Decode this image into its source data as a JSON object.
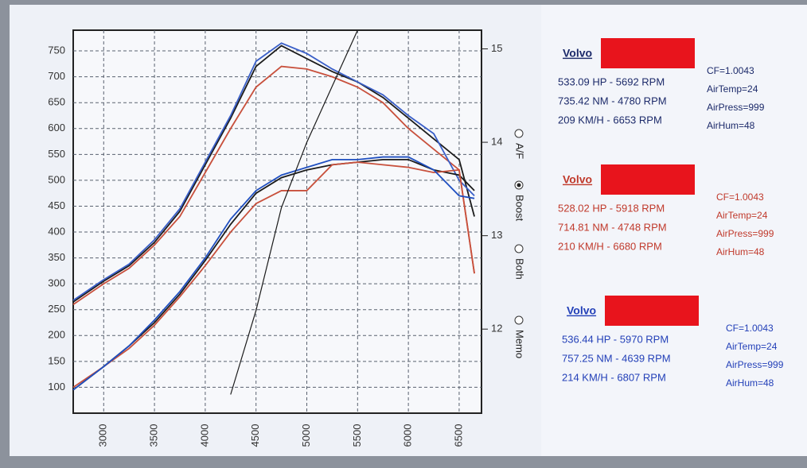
{
  "chart_data": {
    "type": "line",
    "x": [
      2700,
      3000,
      3250,
      3500,
      3750,
      4000,
      4250,
      4500,
      4750,
      5000,
      5250,
      5500,
      5750,
      6000,
      6250,
      6500,
      6650
    ],
    "xlim": [
      2700,
      6720
    ],
    "xticks": [
      3000,
      3500,
      4000,
      4500,
      5000,
      5500,
      6000,
      6500
    ],
    "ylim": [
      50,
      790
    ],
    "yticks": [
      100,
      150,
      200,
      250,
      300,
      350,
      400,
      450,
      500,
      550,
      600,
      650,
      700,
      750
    ],
    "y2lim": [
      11.1,
      15.2
    ],
    "y2ticks": [
      12,
      13,
      14,
      15
    ],
    "grid": true,
    "series": [
      {
        "color": "#1b1b1b",
        "values": [
          265,
          305,
          335,
          380,
          440,
          530,
          620,
          720,
          760,
          735,
          710,
          690,
          660,
          620,
          580,
          540,
          430
        ]
      },
      {
        "color": "#c8503c",
        "values": [
          260,
          300,
          330,
          375,
          430,
          515,
          600,
          680,
          720,
          715,
          700,
          680,
          650,
          600,
          560,
          520,
          320
        ]
      },
      {
        "color": "#3a5fc8",
        "values": [
          268,
          308,
          338,
          385,
          445,
          535,
          625,
          730,
          765,
          745,
          715,
          690,
          665,
          625,
          590,
          500,
          470
        ]
      },
      {
        "color": "#1b1b1b",
        "values": [
          95,
          140,
          180,
          225,
          280,
          345,
          415,
          475,
          505,
          520,
          530,
          535,
          540,
          540,
          520,
          510,
          480
        ]
      },
      {
        "color": "#c8503c",
        "values": [
          100,
          140,
          175,
          220,
          275,
          335,
          400,
          455,
          480,
          480,
          530,
          535,
          530,
          525,
          515,
          520,
          320
        ]
      },
      {
        "color": "#1f4fc0",
        "values": [
          95,
          140,
          180,
          230,
          285,
          350,
          425,
          480,
          510,
          525,
          540,
          540,
          545,
          545,
          520,
          470,
          465
        ]
      },
      {
        "color": "#1b1b1b",
        "axis": "y2",
        "values": [
          null,
          null,
          null,
          null,
          null,
          null,
          11.3,
          12.2,
          13.3,
          14.0,
          14.6,
          15.2,
          null,
          null,
          null,
          null,
          null
        ]
      }
    ]
  },
  "options": [
    "A/F",
    "Boost",
    "Both",
    "Memo"
  ],
  "selected_option": 1,
  "runs": [
    {
      "label": "Volvo",
      "color": "#1c2a6a",
      "lines": [
        "533.09 HP - 5692 RPM",
        "735.42 NM - 4780 RPM",
        "209 KM/H - 6653 RPM"
      ],
      "params": [
        "CF=1.0043",
        "AirTemp=24",
        "AirPress=999",
        "AirHum=48"
      ]
    },
    {
      "label": "Volvo",
      "color": "#c0392b",
      "lines": [
        "528.02 HP - 5918 RPM",
        "714.81 NM - 4748 RPM",
        "210 KM/H - 6680 RPM"
      ],
      "params": [
        "CF=1.0043",
        "AirTemp=24",
        "AirPress=999",
        "AirHum=48"
      ]
    },
    {
      "label": "Volvo",
      "color": "#2340b8",
      "lines": [
        "536.44 HP - 5970 RPM",
        "757.25 NM - 4639 RPM",
        "214 KM/H - 6807 RPM"
      ],
      "params": [
        "CF=1.0043",
        "AirTemp=24",
        "AirPress=999",
        "AirHum=48"
      ]
    }
  ]
}
